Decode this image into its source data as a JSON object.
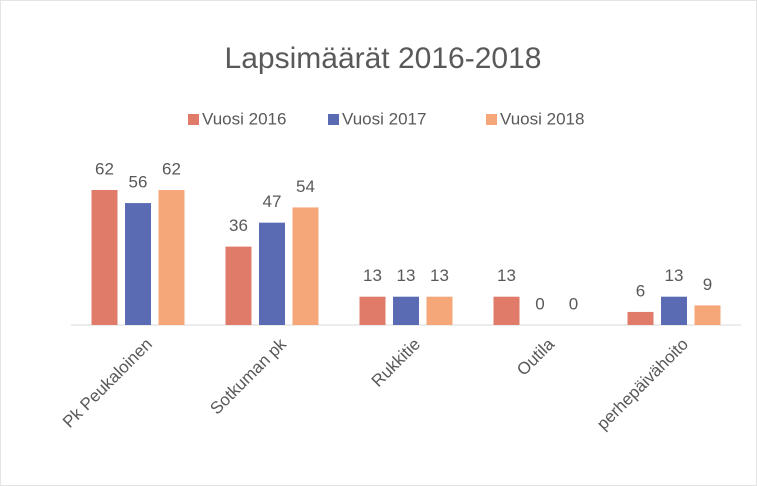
{
  "chart_data": {
    "type": "bar",
    "title": "Lapsimäärät 2016-2018",
    "categories": [
      "Pk Peukaloinen",
      "Sotkuman pk",
      "Rukkitie",
      "Outila",
      "perhepäivähoito"
    ],
    "series": [
      {
        "name": "Vuosi 2016",
        "color": "#e07b6a",
        "values": [
          62,
          36,
          13,
          13,
          6
        ]
      },
      {
        "name": "Vuosi 2017",
        "color": "#5b6bb3",
        "values": [
          56,
          47,
          13,
          0,
          13
        ]
      },
      {
        "name": "Vuosi 2018",
        "color": "#f5a77a",
        "values": [
          62,
          54,
          13,
          0,
          9
        ]
      }
    ],
    "legend": "top",
    "grid": false
  }
}
